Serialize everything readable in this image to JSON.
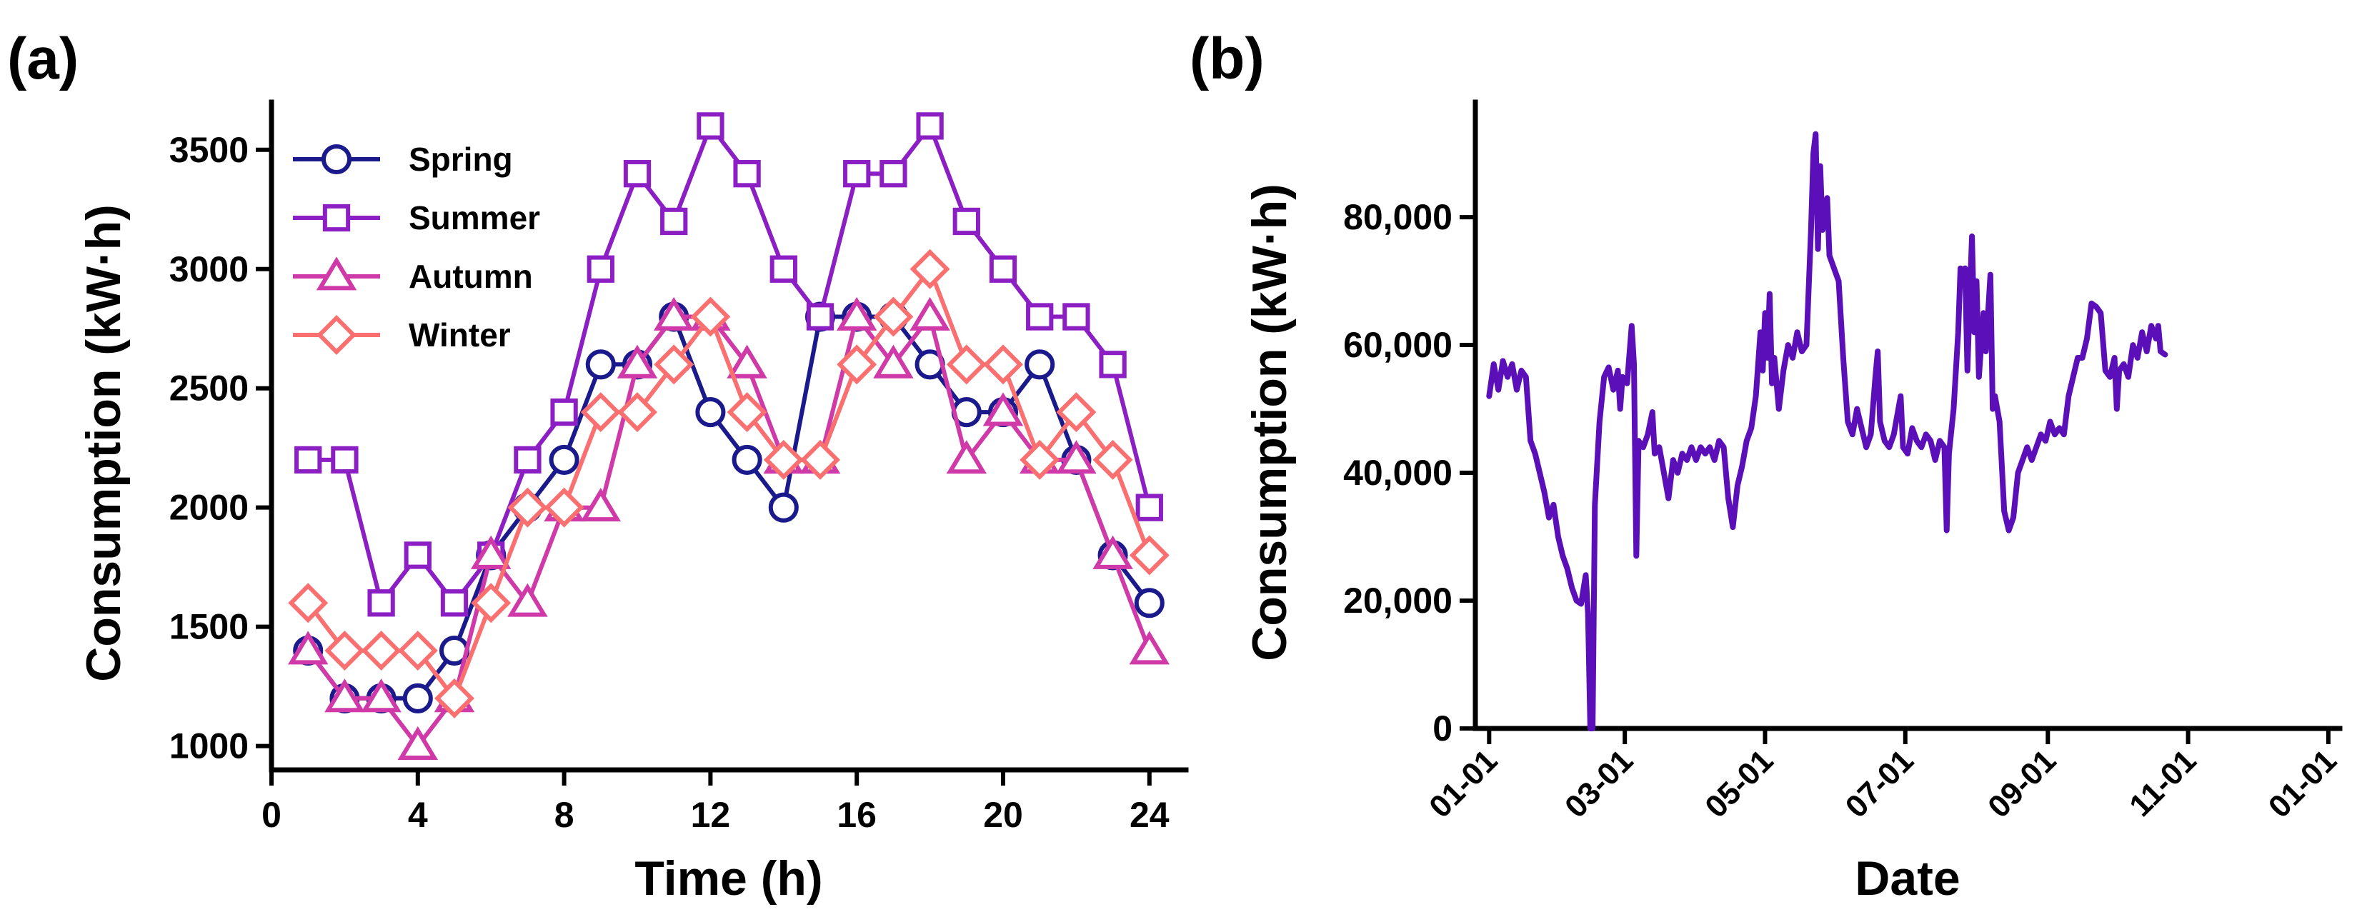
{
  "panels": {
    "a_label": "(a)",
    "b_label": "(b)"
  },
  "chart_data": [
    {
      "type": "line",
      "panel": "(a)",
      "title": "",
      "xlabel": "Time (h)",
      "ylabel": "Consumption (kW·h)",
      "xlim": [
        0,
        25
      ],
      "ylim": [
        900,
        3700
      ],
      "xticks": [
        0,
        4,
        8,
        12,
        16,
        20,
        24
      ],
      "yticks": [
        1000,
        1500,
        2000,
        2500,
        3000,
        3500
      ],
      "grid": false,
      "legend_position": "top-left",
      "x": [
        1,
        2,
        3,
        4,
        5,
        6,
        7,
        8,
        9,
        10,
        11,
        12,
        13,
        14,
        15,
        16,
        17,
        18,
        19,
        20,
        21,
        22,
        23,
        24
      ],
      "series": [
        {
          "name": "Spring",
          "color": "#1a1a8c",
          "marker": "circle",
          "values": [
            1400,
            1200,
            1200,
            1200,
            1400,
            1800,
            2000,
            2200,
            2600,
            2600,
            2800,
            2400,
            2200,
            2000,
            2800,
            2800,
            2800,
            2600,
            2400,
            2400,
            2600,
            2200,
            1800,
            1600
          ]
        },
        {
          "name": "Summer",
          "color": "#8b1fc4",
          "marker": "square",
          "values": [
            2200,
            2200,
            1600,
            1800,
            1600,
            1800,
            2200,
            2400,
            3000,
            3400,
            3200,
            3600,
            3400,
            3000,
            2800,
            3400,
            3400,
            3600,
            3200,
            3000,
            2800,
            2800,
            2600,
            2000
          ]
        },
        {
          "name": "Autumn",
          "color": "#d03aa8",
          "marker": "triangle",
          "values": [
            1400,
            1200,
            1200,
            1000,
            1200,
            1800,
            1600,
            2000,
            2000,
            2600,
            2800,
            2800,
            2600,
            2200,
            2200,
            2800,
            2600,
            2800,
            2200,
            2400,
            2200,
            2200,
            1800,
            1400
          ]
        },
        {
          "name": "Winter",
          "color": "#fa7070",
          "marker": "diamond",
          "values": [
            1600,
            1400,
            1400,
            1400,
            1200,
            1600,
            2000,
            2000,
            2400,
            2400,
            2600,
            2800,
            2400,
            2200,
            2200,
            2600,
            2800,
            3000,
            2600,
            2600,
            2200,
            2400,
            2200,
            1800
          ]
        }
      ]
    },
    {
      "type": "line",
      "panel": "(b)",
      "title": "",
      "xlabel": "Date",
      "ylabel": "Consumption (kW·h)",
      "xlim": [
        -6,
        370
      ],
      "ylim": [
        0,
        98000
      ],
      "xticks": [
        {
          "label": "01-01",
          "x": 0
        },
        {
          "label": "03-01",
          "x": 59
        },
        {
          "label": "05-01",
          "x": 120
        },
        {
          "label": "07-01",
          "x": 181
        },
        {
          "label": "09-01",
          "x": 243
        },
        {
          "label": "11-01",
          "x": 304
        },
        {
          "label": "01-01",
          "x": 365
        }
      ],
      "yticks": [
        {
          "label": "0",
          "y": 0
        },
        {
          "label": "20,000",
          "y": 20000
        },
        {
          "label": "40,000",
          "y": 40000
        },
        {
          "label": "60,000",
          "y": 60000
        },
        {
          "label": "80,000",
          "y": 80000
        }
      ],
      "grid": false,
      "color": "#5a0fb8",
      "points": [
        [
          0,
          52000
        ],
        [
          2,
          57000
        ],
        [
          4,
          53000
        ],
        [
          6,
          57500
        ],
        [
          8,
          55000
        ],
        [
          10,
          57000
        ],
        [
          12,
          53000
        ],
        [
          14,
          56000
        ],
        [
          16,
          55000
        ],
        [
          18,
          45000
        ],
        [
          20,
          43000
        ],
        [
          22,
          40000
        ],
        [
          24,
          37000
        ],
        [
          26,
          33000
        ],
        [
          28,
          35000
        ],
        [
          30,
          30000
        ],
        [
          32,
          27000
        ],
        [
          34,
          25000
        ],
        [
          36,
          22000
        ],
        [
          38,
          20000
        ],
        [
          40,
          19500
        ],
        [
          42,
          24000
        ],
        [
          43,
          18000
        ],
        [
          44,
          0
        ],
        [
          45,
          0
        ],
        [
          46,
          35000
        ],
        [
          48,
          48000
        ],
        [
          50,
          55000
        ],
        [
          52,
          56500
        ],
        [
          54,
          53000
        ],
        [
          56,
          56000
        ],
        [
          57,
          50000
        ],
        [
          58,
          55000
        ],
        [
          60,
          54000
        ],
        [
          62,
          63000
        ],
        [
          63,
          57000
        ],
        [
          64,
          27000
        ],
        [
          65,
          45000
        ],
        [
          67,
          44000
        ],
        [
          69,
          46000
        ],
        [
          71,
          49500
        ],
        [
          72,
          43000
        ],
        [
          74,
          44000
        ],
        [
          76,
          40000
        ],
        [
          78,
          36000
        ],
        [
          80,
          42000
        ],
        [
          82,
          40000
        ],
        [
          84,
          43000
        ],
        [
          86,
          42000
        ],
        [
          88,
          44000
        ],
        [
          90,
          42000
        ],
        [
          92,
          44000
        ],
        [
          94,
          43000
        ],
        [
          96,
          44000
        ],
        [
          98,
          42000
        ],
        [
          100,
          45000
        ],
        [
          102,
          44000
        ],
        [
          104,
          36000
        ],
        [
          106,
          31500
        ],
        [
          108,
          38000
        ],
        [
          110,
          41000
        ],
        [
          112,
          45000
        ],
        [
          114,
          47000
        ],
        [
          116,
          52000
        ],
        [
          118,
          62000
        ],
        [
          119,
          56000
        ],
        [
          120,
          65000
        ],
        [
          121,
          58000
        ],
        [
          122,
          68000
        ],
        [
          123,
          54000
        ],
        [
          124,
          58000
        ],
        [
          126,
          50000
        ],
        [
          128,
          56000
        ],
        [
          130,
          60000
        ],
        [
          132,
          58000
        ],
        [
          134,
          62000
        ],
        [
          136,
          59000
        ],
        [
          138,
          60000
        ],
        [
          140,
          78000
        ],
        [
          141,
          90000
        ],
        [
          142,
          93000
        ],
        [
          143,
          75000
        ],
        [
          144,
          88000
        ],
        [
          145,
          78000
        ],
        [
          146,
          80000
        ],
        [
          147,
          83000
        ],
        [
          148,
          74000
        ],
        [
          150,
          72000
        ],
        [
          152,
          70000
        ],
        [
          154,
          58000
        ],
        [
          156,
          48000
        ],
        [
          158,
          46000
        ],
        [
          160,
          50000
        ],
        [
          162,
          47000
        ],
        [
          164,
          44000
        ],
        [
          166,
          46000
        ],
        [
          168,
          55000
        ],
        [
          169,
          59000
        ],
        [
          170,
          48000
        ],
        [
          172,
          45000
        ],
        [
          174,
          44000
        ],
        [
          176,
          46000
        ],
        [
          178,
          50000
        ],
        [
          179,
          52000
        ],
        [
          180,
          44000
        ],
        [
          182,
          43000
        ],
        [
          184,
          47000
        ],
        [
          186,
          45000
        ],
        [
          188,
          44000
        ],
        [
          190,
          46000
        ],
        [
          192,
          45000
        ],
        [
          194,
          42000
        ],
        [
          196,
          45000
        ],
        [
          198,
          44000
        ],
        [
          199,
          31000
        ],
        [
          200,
          43000
        ],
        [
          202,
          50000
        ],
        [
          204,
          62000
        ],
        [
          205,
          72000
        ],
        [
          206,
          70000
        ],
        [
          207,
          72000
        ],
        [
          208,
          56000
        ],
        [
          209,
          67000
        ],
        [
          210,
          77000
        ],
        [
          211,
          62000
        ],
        [
          212,
          70000
        ],
        [
          213,
          55000
        ],
        [
          214,
          60000
        ],
        [
          215,
          65000
        ],
        [
          216,
          59000
        ],
        [
          218,
          71000
        ],
        [
          219,
          50000
        ],
        [
          220,
          52000
        ],
        [
          222,
          48000
        ],
        [
          224,
          34000
        ],
        [
          226,
          31000
        ],
        [
          228,
          33000
        ],
        [
          230,
          40000
        ],
        [
          232,
          42000
        ],
        [
          234,
          44000
        ],
        [
          236,
          42000
        ],
        [
          238,
          44000
        ],
        [
          240,
          46000
        ],
        [
          242,
          45000
        ],
        [
          244,
          48000
        ],
        [
          246,
          46000
        ],
        [
          248,
          47000
        ],
        [
          250,
          46000
        ],
        [
          252,
          52000
        ],
        [
          254,
          55000
        ],
        [
          256,
          58000
        ],
        [
          258,
          58000
        ],
        [
          260,
          61000
        ],
        [
          262,
          66500
        ],
        [
          264,
          66000
        ],
        [
          266,
          65000
        ],
        [
          268,
          56000
        ],
        [
          270,
          55000
        ],
        [
          272,
          58000
        ],
        [
          273,
          50000
        ],
        [
          274,
          56000
        ],
        [
          276,
          57000
        ],
        [
          278,
          55000
        ],
        [
          280,
          60000
        ],
        [
          282,
          58000
        ],
        [
          284,
          62000
        ],
        [
          286,
          59000
        ],
        [
          288,
          63000
        ],
        [
          290,
          61000
        ],
        [
          291,
          63000
        ],
        [
          292,
          59000
        ],
        [
          294,
          58500
        ]
      ]
    }
  ]
}
